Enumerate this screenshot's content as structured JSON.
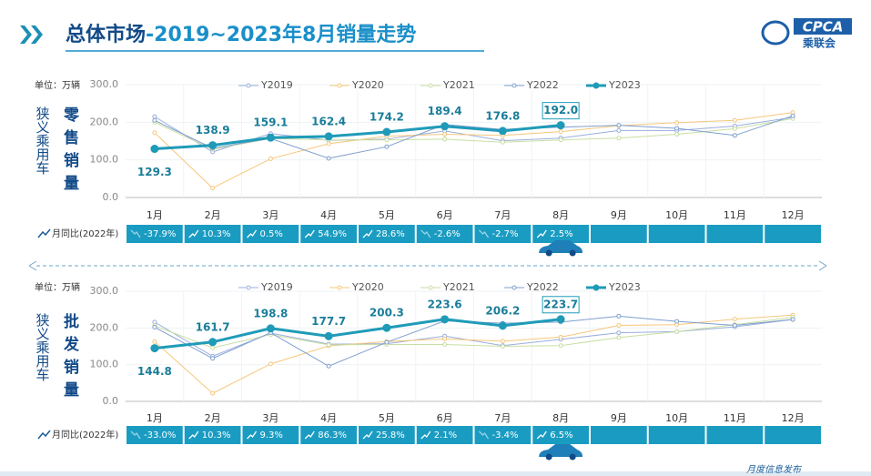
{
  "header": {
    "title_main": "总体市场",
    "title_rest": "-2019~2023年8月销量走势",
    "logo": "CPCA",
    "logo_sub": "乘联会"
  },
  "footer": "月度信息发布",
  "chart_data": [
    {
      "type": "line",
      "unit_label": "单位：万辆",
      "side_label": "狭义乘用车",
      "metric_label": "零售销量",
      "yoy_label": "月同比(2022年)",
      "categories": [
        "1月",
        "2月",
        "3月",
        "4月",
        "5月",
        "6月",
        "7月",
        "8月",
        "9月",
        "10月",
        "11月",
        "12月"
      ],
      "ylim": [
        0,
        300
      ],
      "yticks": [
        {
          "value": 0,
          "label": "0.0"
        },
        {
          "value": 100,
          "label": "100.0"
        },
        {
          "value": 200,
          "label": "200.0"
        },
        {
          "value": 300,
          "label": "300.0"
        }
      ],
      "grid": true,
      "series": [
        {
          "name": "Y2019",
          "color": "#9aaedc",
          "values": [
            215,
            121,
            170,
            152,
            155,
            177,
            151,
            158,
            178,
            178,
            190,
            213
          ]
        },
        {
          "name": "Y2020",
          "color": "#f6c77c",
          "values": [
            172,
            25,
            103,
            143,
            163,
            168,
            165,
            175,
            191,
            199,
            205,
            226
          ]
        },
        {
          "name": "Y2021",
          "color": "#c9dea2",
          "values": [
            200,
            128,
            157,
            153,
            153,
            155,
            147,
            153,
            158,
            168,
            183,
            210
          ]
        },
        {
          "name": "Y2022",
          "color": "#7f9fcf",
          "values": [
            205,
            131,
            157,
            104,
            135,
            194,
            181,
            187,
            192,
            184,
            165,
            217
          ]
        },
        {
          "name": "Y2023",
          "color": "#1f9bb8",
          "values": [
            129.3,
            138.9,
            159.1,
            162.4,
            174.2,
            189.4,
            176.8,
            192.0,
            null,
            null,
            null,
            null
          ],
          "value_labels": [
            "129.3",
            "138.9",
            "159.1",
            "162.4",
            "174.2",
            "189.4",
            "176.8",
            "192.0",
            null,
            null,
            null,
            null
          ]
        }
      ],
      "yoy": {
        "values": [
          -37.9,
          10.3,
          0.5,
          54.9,
          28.6,
          -2.6,
          -2.7,
          2.5
        ],
        "value_labels": [
          "-37.9%",
          "10.3%",
          "0.5%",
          "54.9%",
          "28.6%",
          "-2.6%",
          "-2.7%",
          "2.5%"
        ]
      }
    },
    {
      "type": "line",
      "unit_label": "单位：万辆",
      "side_label": "狭义乘用车",
      "metric_label": "批发销量",
      "yoy_label": "月同比(2022年)",
      "categories": [
        "1月",
        "2月",
        "3月",
        "4月",
        "5月",
        "6月",
        "7月",
        "8月",
        "9月",
        "10月",
        "11月",
        "12月"
      ],
      "ylim": [
        0,
        300
      ],
      "yticks": [
        {
          "value": 0,
          "label": "0.0"
        },
        {
          "value": 100,
          "label": "100.0"
        },
        {
          "value": 200,
          "label": "200.0"
        },
        {
          "value": 300,
          "label": "300.0"
        }
      ],
      "grid": true,
      "series": [
        {
          "name": "Y2019",
          "color": "#9aaedc",
          "values": [
            216,
            123,
            186,
            156,
            157,
            178,
            152,
            169,
            187,
            190,
            203,
            223
          ]
        },
        {
          "name": "Y2020",
          "color": "#f6c77c",
          "values": [
            163,
            22,
            102,
            151,
            163,
            170,
            164,
            175,
            207,
            209,
            224,
            235
          ]
        },
        {
          "name": "Y2021",
          "color": "#c9dea2",
          "values": [
            206,
            146,
            182,
            154,
            155,
            155,
            150,
            152,
            174,
            190,
            209,
            229
          ]
        },
        {
          "name": "Y2022",
          "color": "#7f9fcf",
          "values": [
            202,
            117,
            187,
            96,
            161,
            219,
            213,
            216,
            232,
            218,
            207,
            223
          ]
        },
        {
          "name": "Y2023",
          "color": "#1f9bb8",
          "values": [
            144.8,
            161.7,
            198.8,
            177.7,
            200.3,
            223.6,
            206.2,
            223.7,
            null,
            null,
            null,
            null
          ],
          "value_labels": [
            "144.8",
            "161.7",
            "198.8",
            "177.7",
            "200.3",
            "223.6",
            "206.2",
            "223.7",
            null,
            null,
            null,
            null
          ]
        }
      ],
      "yoy": {
        "values": [
          -33.0,
          10.3,
          9.3,
          86.3,
          25.8,
          2.1,
          -3.4,
          6.5
        ],
        "value_labels": [
          "-33.0%",
          "10.3%",
          "9.3%",
          "86.3%",
          "25.8%",
          "2.1%",
          "-3.4%",
          "6.5%"
        ]
      }
    }
  ]
}
